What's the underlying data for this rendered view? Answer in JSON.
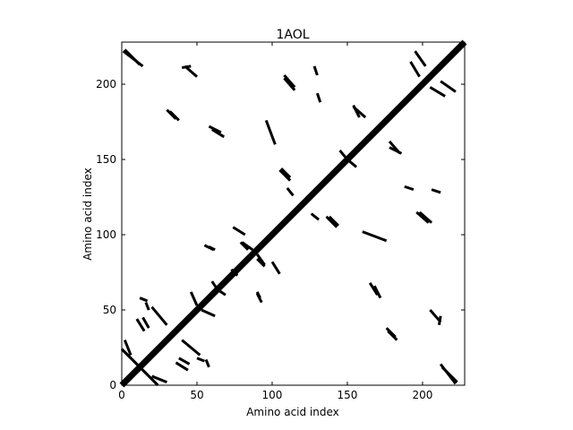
{
  "chart_data": {
    "type": "heatmap",
    "title": "1AOL",
    "xlabel": "Amino acid index",
    "ylabel": "Amino acid index",
    "xlim": [
      0,
      228
    ],
    "ylim": [
      0,
      228
    ],
    "xticks": [
      0,
      50,
      100,
      150,
      200
    ],
    "yticks": [
      0,
      50,
      100,
      150,
      200
    ],
    "grid": false,
    "legend": "none",
    "colors": {
      "contact": "#000000",
      "background": "#ffffff",
      "frame": "#000000"
    },
    "description_of_marks": "binary contact map (black = contact), symmetric about diagonal",
    "diagonal": {
      "from": [
        0,
        0
      ],
      "to": [
        228,
        228
      ]
    },
    "contact_segments": [
      {
        "x": [
          1,
          14
        ],
        "y": [
          222,
          212
        ]
      },
      {
        "x": [
          40,
          46
        ],
        "y": [
          211,
          212
        ]
      },
      {
        "x": [
          30,
          36
        ],
        "y": [
          183,
          177
        ]
      },
      {
        "x": [
          58,
          66
        ],
        "y": [
          172,
          168
        ]
      },
      {
        "x": [
          96,
          102
        ],
        "y": [
          176,
          160
        ]
      },
      {
        "x": [
          108,
          115
        ],
        "y": [
          206,
          198
        ]
      },
      {
        "x": [
          128,
          130
        ],
        "y": [
          212,
          206
        ]
      },
      {
        "x": [
          105,
          112
        ],
        "y": [
          143,
          136
        ]
      },
      {
        "x": [
          110,
          114
        ],
        "y": [
          131,
          126
        ]
      },
      {
        "x": [
          145,
          150
        ],
        "y": [
          156,
          150
        ]
      },
      {
        "x": [
          154,
          162
        ],
        "y": [
          185,
          178
        ]
      },
      {
        "x": [
          178,
          186
        ],
        "y": [
          158,
          154
        ]
      },
      {
        "x": [
          192,
          198
        ],
        "y": [
          215,
          205
        ]
      },
      {
        "x": [
          195,
          202
        ],
        "y": [
          222,
          212
        ]
      },
      {
        "x": [
          138,
          144
        ],
        "y": [
          112,
          106
        ]
      },
      {
        "x": [
          196,
          204
        ],
        "y": [
          115,
          108
        ]
      },
      {
        "x": [
          188,
          194
        ],
        "y": [
          132,
          130
        ]
      },
      {
        "x": [
          55,
          61
        ],
        "y": [
          93,
          90
        ]
      },
      {
        "x": [
          79,
          84
        ],
        "y": [
          95,
          90
        ]
      },
      {
        "x": [
          73,
          76
        ],
        "y": [
          77,
          73
        ]
      },
      {
        "x": [
          90,
          95
        ],
        "y": [
          87,
          80
        ]
      },
      {
        "x": [
          100,
          105
        ],
        "y": [
          82,
          74
        ]
      },
      {
        "x": [
          63,
          69
        ],
        "y": [
          64,
          60
        ]
      },
      {
        "x": [
          53,
          62
        ],
        "y": [
          50,
          46
        ]
      },
      {
        "x": [
          90,
          92
        ],
        "y": [
          62,
          58
        ]
      },
      {
        "x": [
          165,
          170
        ],
        "y": [
          68,
          60
        ]
      },
      {
        "x": [
          176,
          182
        ],
        "y": [
          38,
          32
        ]
      },
      {
        "x": [
          205,
          212
        ],
        "y": [
          50,
          42
        ]
      },
      {
        "x": [
          213,
          223
        ],
        "y": [
          12,
          2
        ]
      },
      {
        "x": [
          0,
          24
        ],
        "y": [
          24,
          0
        ]
      },
      {
        "x": [
          14,
          18
        ],
        "y": [
          45,
          38
        ]
      },
      {
        "x": [
          16,
          18
        ],
        "y": [
          55,
          50
        ]
      },
      {
        "x": [
          36,
          44
        ],
        "y": [
          15,
          10
        ]
      },
      {
        "x": [
          56,
          58
        ],
        "y": [
          17,
          12
        ]
      },
      {
        "x": [
          20,
          30
        ],
        "y": [
          6,
          2
        ]
      },
      {
        "x": [
          40,
          52
        ],
        "y": [
          30,
          20
        ]
      }
    ]
  }
}
